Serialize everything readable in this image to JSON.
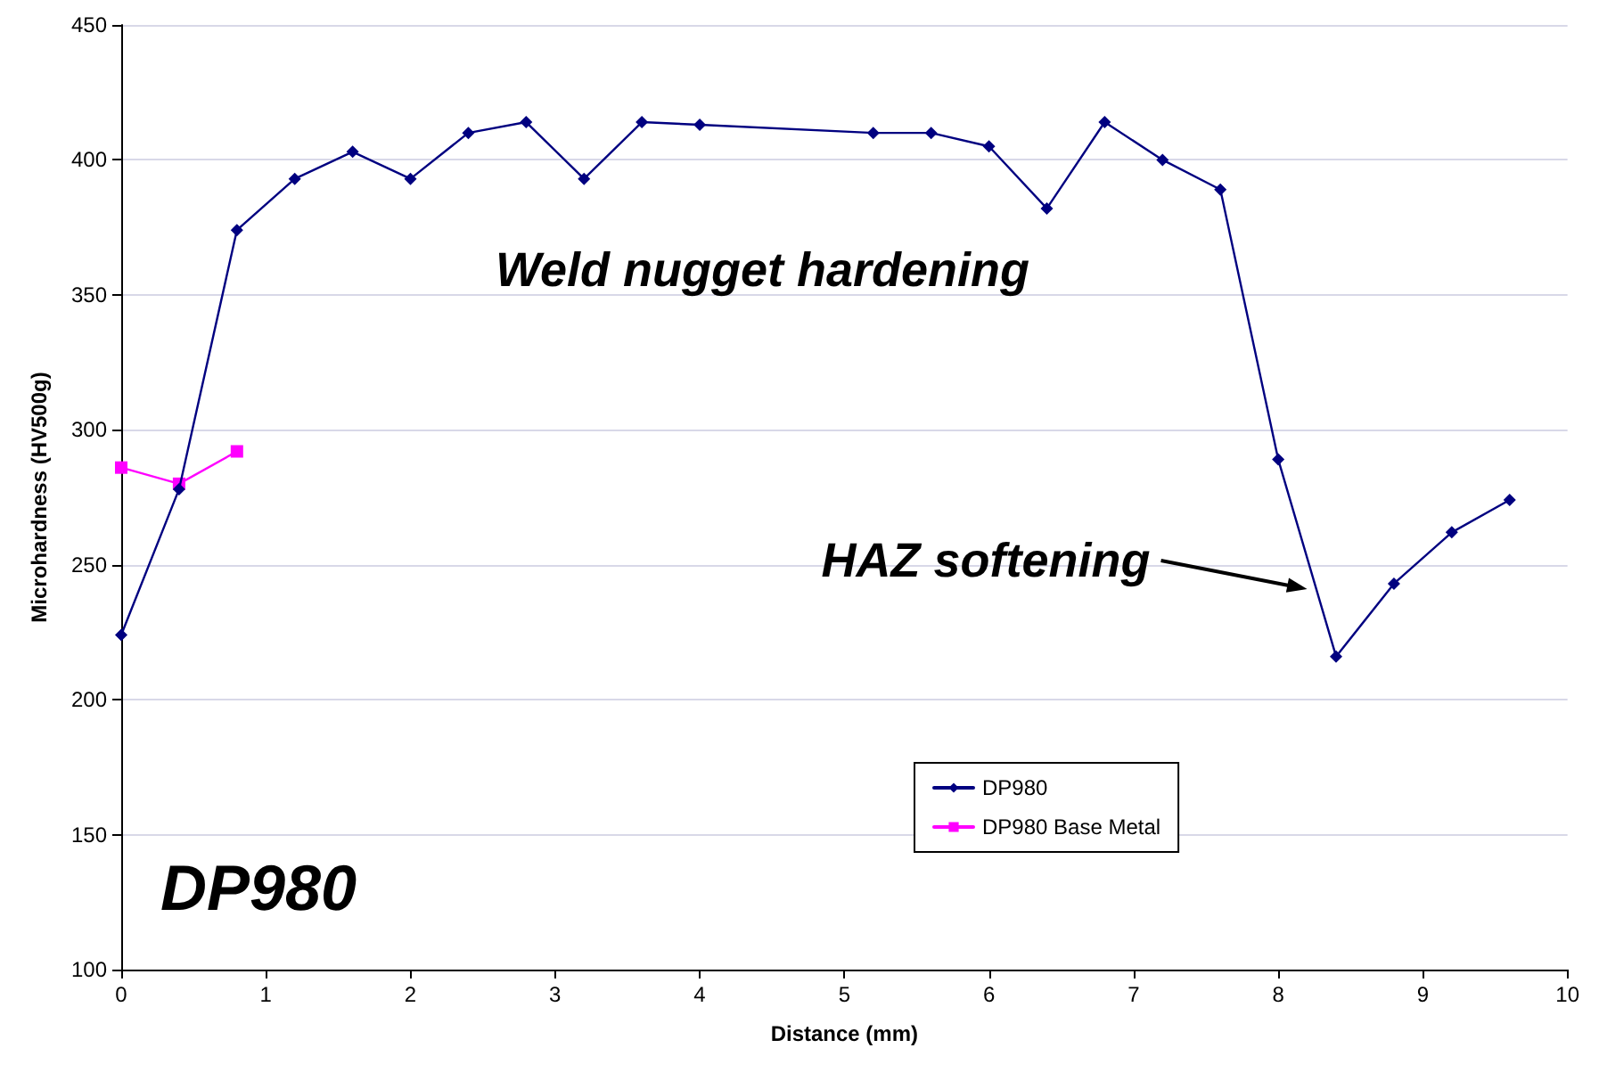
{
  "chart_data": {
    "type": "line",
    "xlabel": "Distance (mm)",
    "ylabel": "Microhardness (HV500g)",
    "xlim": [
      0,
      10
    ],
    "xticks": [
      0,
      1,
      2,
      3,
      4,
      5,
      6,
      7,
      8,
      9,
      10
    ],
    "ylim": [
      100,
      450
    ],
    "yticks": [
      100,
      150,
      200,
      250,
      300,
      350,
      400,
      450
    ],
    "grid": "y",
    "legend": "bottom right",
    "line_style": "solid",
    "series": [
      {
        "name": "DP980",
        "color": "#000080",
        "marker": "diamond",
        "x": [
          0,
          0.4,
          0.8,
          1.2,
          1.6,
          2.0,
          2.4,
          2.8,
          3.2,
          3.6,
          4.0,
          5.2,
          5.6,
          6.0,
          6.4,
          6.8,
          7.2,
          7.6,
          8.0,
          8.4,
          8.8,
          9.2,
          9.6
        ],
        "values": [
          224,
          278,
          374,
          393,
          403,
          393,
          410,
          414,
          393,
          414,
          413,
          410,
          410,
          405,
          382,
          414,
          400,
          389,
          289,
          216,
          243,
          262,
          274
        ]
      },
      {
        "name": "DP980 Base Metal",
        "color": "#ff00ff",
        "marker": "square",
        "x": [
          0,
          0.4,
          0.8
        ],
        "values": [
          286,
          280,
          292
        ]
      }
    ],
    "annotations": [
      "Weld nugget hardening",
      "DP980",
      {
        "text": "HAZ softening",
        "x": 8.2,
        "y": 241
      }
    ]
  }
}
